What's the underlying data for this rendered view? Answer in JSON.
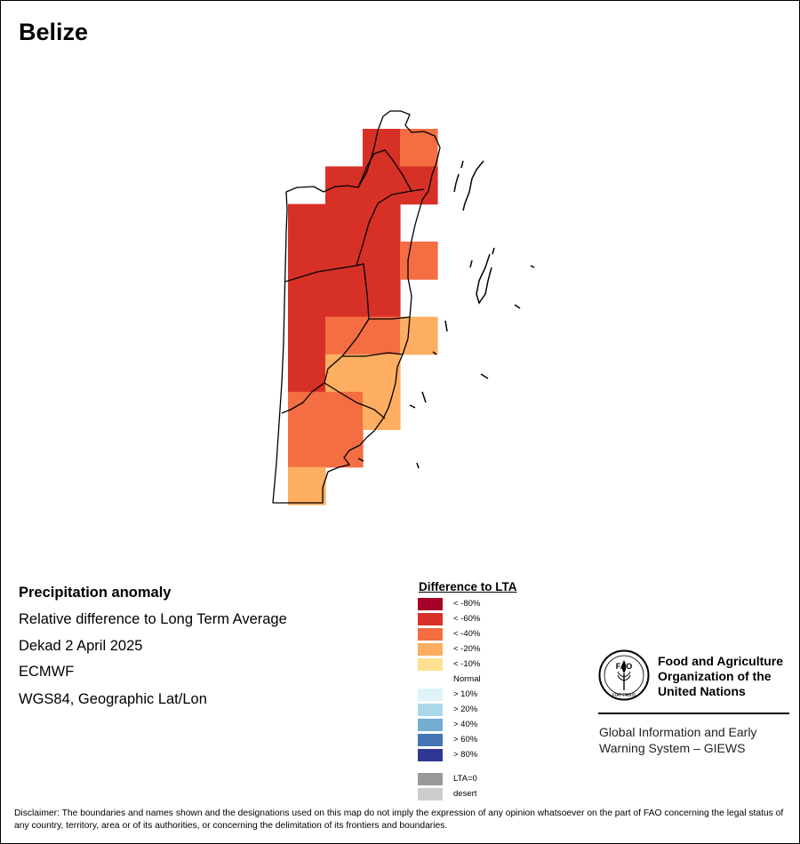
{
  "map": {
    "title": "Belize",
    "info": {
      "title": "Precipitation anomaly",
      "line1": "Relative difference to Long Term Average",
      "line2": "Dekad 2 April 2025",
      "line3": "ECMWF",
      "line4": "WGS84, Geographic Lat/Lon"
    }
  },
  "legend": {
    "title": "Difference to LTA",
    "items": [
      {
        "label": "< -80%",
        "color": "#a50026"
      },
      {
        "label": "< -60%",
        "color": "#d73027"
      },
      {
        "label": "< -40%",
        "color": "#f46d43"
      },
      {
        "label": "< -20%",
        "color": "#fdae61"
      },
      {
        "label": "< -10%",
        "color": "#fee090"
      },
      {
        "label": "Normal",
        "color": "#ffffff"
      },
      {
        "label": "> 10%",
        "color": "#e0f3f8"
      },
      {
        "label": "> 20%",
        "color": "#abd9e9"
      },
      {
        "label": "> 40%",
        "color": "#74add1"
      },
      {
        "label": "> 60%",
        "color": "#4575b4"
      },
      {
        "label": "> 80%",
        "color": "#313695"
      },
      {
        "label": "LTA=0",
        "color": "#999999"
      },
      {
        "label": "desert",
        "color": "#cccccc"
      }
    ]
  },
  "organization": {
    "logo_text": "FAO",
    "logo_motto": "FIAT PANIS",
    "name_line1": "Food and Agriculture",
    "name_line2": "Organization of the",
    "name_line3": "United Nations",
    "unit_line1": "Global Information and Early",
    "unit_line2": "Warning System – GIEWS"
  },
  "disclaimer": "Disclaimer: The boundaries and names shown and the designations used on this map do not imply the expression of any opinion whatsoever on the part of FAO concerning the legal status of any country, territory, area or of its authorities, or concerning the delimitation of its frontiers and boundaries.",
  "anomaly_grid": [
    {
      "row": 0,
      "col": 2,
      "category": "< -60%"
    },
    {
      "row": 0,
      "col": 3,
      "category": "< -40%"
    },
    {
      "row": 1,
      "col": 1,
      "category": "< -60%"
    },
    {
      "row": 1,
      "col": 2,
      "category": "< -60%"
    },
    {
      "row": 1,
      "col": 3,
      "category": "< -60%"
    },
    {
      "row": 2,
      "col": 0,
      "category": "< -60%"
    },
    {
      "row": 2,
      "col": 1,
      "category": "< -60%"
    },
    {
      "row": 2,
      "col": 2,
      "category": "< -60%"
    },
    {
      "row": 3,
      "col": 0,
      "category": "< -60%"
    },
    {
      "row": 3,
      "col": 1,
      "category": "< -60%"
    },
    {
      "row": 3,
      "col": 2,
      "category": "< -60%"
    },
    {
      "row": 3,
      "col": 3,
      "category": "< -40%"
    },
    {
      "row": 4,
      "col": 0,
      "category": "< -60%"
    },
    {
      "row": 4,
      "col": 1,
      "category": "< -60%"
    },
    {
      "row": 4,
      "col": 2,
      "category": "< -60%"
    },
    {
      "row": 5,
      "col": 0,
      "category": "< -60%"
    },
    {
      "row": 5,
      "col": 1,
      "category": "< -40%"
    },
    {
      "row": 5,
      "col": 2,
      "category": "< -40%"
    },
    {
      "row": 5,
      "col": 3,
      "category": "< -20%"
    },
    {
      "row": 6,
      "col": 0,
      "category": "< -60%"
    },
    {
      "row": 6,
      "col": 1,
      "category": "< -20%"
    },
    {
      "row": 6,
      "col": 2,
      "category": "< -20%"
    },
    {
      "row": 7,
      "col": 0,
      "category": "< -40%"
    },
    {
      "row": 7,
      "col": 1,
      "category": "< -40%"
    },
    {
      "row": 7,
      "col": 2,
      "category": "< -20%"
    },
    {
      "row": 8,
      "col": 0,
      "category": "< -40%"
    },
    {
      "row": 8,
      "col": 1,
      "category": "< -40%"
    },
    {
      "row": 9,
      "col": 0,
      "category": "< -20%"
    }
  ]
}
